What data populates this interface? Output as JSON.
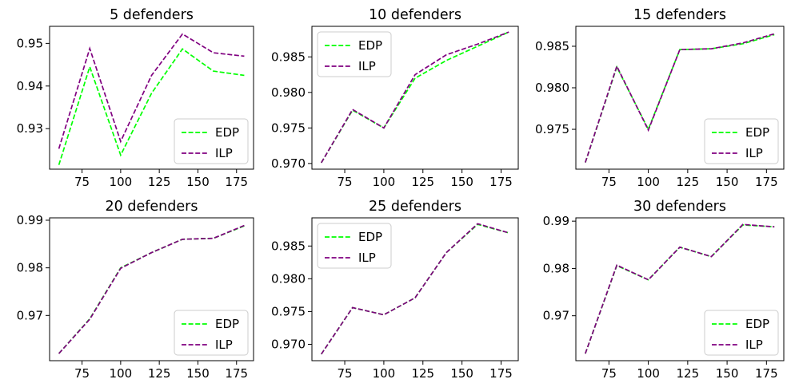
{
  "chart_data": [
    {
      "type": "line",
      "title": "5 defenders",
      "x": [
        60,
        80,
        100,
        120,
        140,
        160,
        180
      ],
      "xticks": [
        75,
        100,
        125,
        150,
        175
      ],
      "yticks": [
        0.93,
        0.94,
        0.95
      ],
      "ytick_labels": [
        "0.93",
        "0.94",
        "0.95"
      ],
      "xlim": [
        54,
        186
      ],
      "ylim": [
        0.9205,
        0.954
      ],
      "legend": "lower-right",
      "series": [
        {
          "name": "EDP",
          "color": "#00ff00",
          "values": [
            0.9215,
            0.9445,
            0.9238,
            0.9383,
            0.9487,
            0.9435,
            0.9425
          ]
        },
        {
          "name": "ILP",
          "color": "#800080",
          "values": [
            0.9253,
            0.9488,
            0.927,
            0.9425,
            0.9522,
            0.9478,
            0.947
          ]
        }
      ]
    },
    {
      "type": "line",
      "title": "10 defenders",
      "x": [
        60,
        80,
        100,
        120,
        140,
        160,
        180
      ],
      "xticks": [
        75,
        100,
        125,
        150,
        175
      ],
      "yticks": [
        0.97,
        0.975,
        0.98,
        0.985
      ],
      "ytick_labels": [
        "0.970",
        "0.975",
        "0.980",
        "0.985"
      ],
      "xlim": [
        54,
        186
      ],
      "ylim": [
        0.9692,
        0.9893
      ],
      "legend": "upper-left",
      "series": [
        {
          "name": "EDP",
          "color": "#00ff00",
          "values": [
            0.9701,
            0.9775,
            0.975,
            0.982,
            0.9845,
            0.9865,
            0.9885
          ]
        },
        {
          "name": "ILP",
          "color": "#800080",
          "values": [
            0.9701,
            0.9776,
            0.975,
            0.9825,
            0.9853,
            0.9868,
            0.9885
          ]
        }
      ]
    },
    {
      "type": "line",
      "title": "15 defenders",
      "x": [
        60,
        80,
        100,
        120,
        140,
        160,
        180
      ],
      "xticks": [
        75,
        100,
        125,
        150,
        175
      ],
      "yticks": [
        0.975,
        0.98,
        0.985
      ],
      "ytick_labels": [
        "0.975",
        "0.980",
        "0.985"
      ],
      "xlim": [
        54,
        186
      ],
      "ylim": [
        0.9702,
        0.9874
      ],
      "legend": "lower-right",
      "series": [
        {
          "name": "EDP",
          "color": "#00ff00",
          "values": [
            0.971,
            0.9825,
            0.975,
            0.9846,
            0.9847,
            0.9853,
            0.9864
          ]
        },
        {
          "name": "ILP",
          "color": "#800080",
          "values": [
            0.971,
            0.9826,
            0.9749,
            0.9846,
            0.9847,
            0.9854,
            0.9865
          ]
        }
      ]
    },
    {
      "type": "line",
      "title": "20 defenders",
      "x": [
        60,
        80,
        100,
        120,
        140,
        160,
        180
      ],
      "xticks": [
        75,
        100,
        125,
        150,
        175
      ],
      "yticks": [
        0.97,
        0.98,
        0.99
      ],
      "ytick_labels": [
        "0.97",
        "0.98",
        "0.99"
      ],
      "xlim": [
        54,
        186
      ],
      "ylim": [
        0.9605,
        0.9905
      ],
      "legend": "lower-right",
      "series": [
        {
          "name": "EDP",
          "color": "#00ff00",
          "values": [
            0.962,
            0.9693,
            0.98,
            0.9832,
            0.986,
            0.9862,
            0.9888
          ]
        },
        {
          "name": "ILP",
          "color": "#800080",
          "values": [
            0.962,
            0.9692,
            0.9799,
            0.9832,
            0.986,
            0.9862,
            0.9889
          ]
        }
      ]
    },
    {
      "type": "line",
      "title": "25 defenders",
      "x": [
        60,
        80,
        100,
        120,
        140,
        160,
        180
      ],
      "xticks": [
        75,
        100,
        125,
        150,
        175
      ],
      "yticks": [
        0.97,
        0.975,
        0.98,
        0.985
      ],
      "ytick_labels": [
        "0.970",
        "0.975",
        "0.980",
        "0.985"
      ],
      "xlim": [
        54,
        186
      ],
      "ylim": [
        0.9675,
        0.9893
      ],
      "legend": "upper-left",
      "series": [
        {
          "name": "EDP",
          "color": "#00ff00",
          "values": [
            0.9685,
            0.9756,
            0.9745,
            0.9771,
            0.984,
            0.9883,
            0.987
          ]
        },
        {
          "name": "ILP",
          "color": "#800080",
          "values": [
            0.9685,
            0.9756,
            0.9745,
            0.9771,
            0.984,
            0.9884,
            0.987
          ]
        }
      ]
    },
    {
      "type": "line",
      "title": "30 defenders",
      "x": [
        60,
        80,
        100,
        120,
        140,
        160,
        180
      ],
      "xticks": [
        75,
        100,
        125,
        150,
        175
      ],
      "yticks": [
        0.97,
        0.98,
        0.99
      ],
      "ytick_labels": [
        "0.97",
        "0.98",
        "0.99"
      ],
      "xlim": [
        54,
        186
      ],
      "ylim": [
        0.9605,
        0.9907
      ],
      "legend": "lower-right",
      "series": [
        {
          "name": "EDP",
          "color": "#00ff00",
          "values": [
            0.962,
            0.9806,
            0.9776,
            0.9845,
            0.9825,
            0.9892,
            0.9888
          ]
        },
        {
          "name": "ILP",
          "color": "#800080",
          "values": [
            0.962,
            0.9807,
            0.9776,
            0.9845,
            0.9825,
            0.9893,
            0.9888
          ]
        }
      ]
    }
  ]
}
